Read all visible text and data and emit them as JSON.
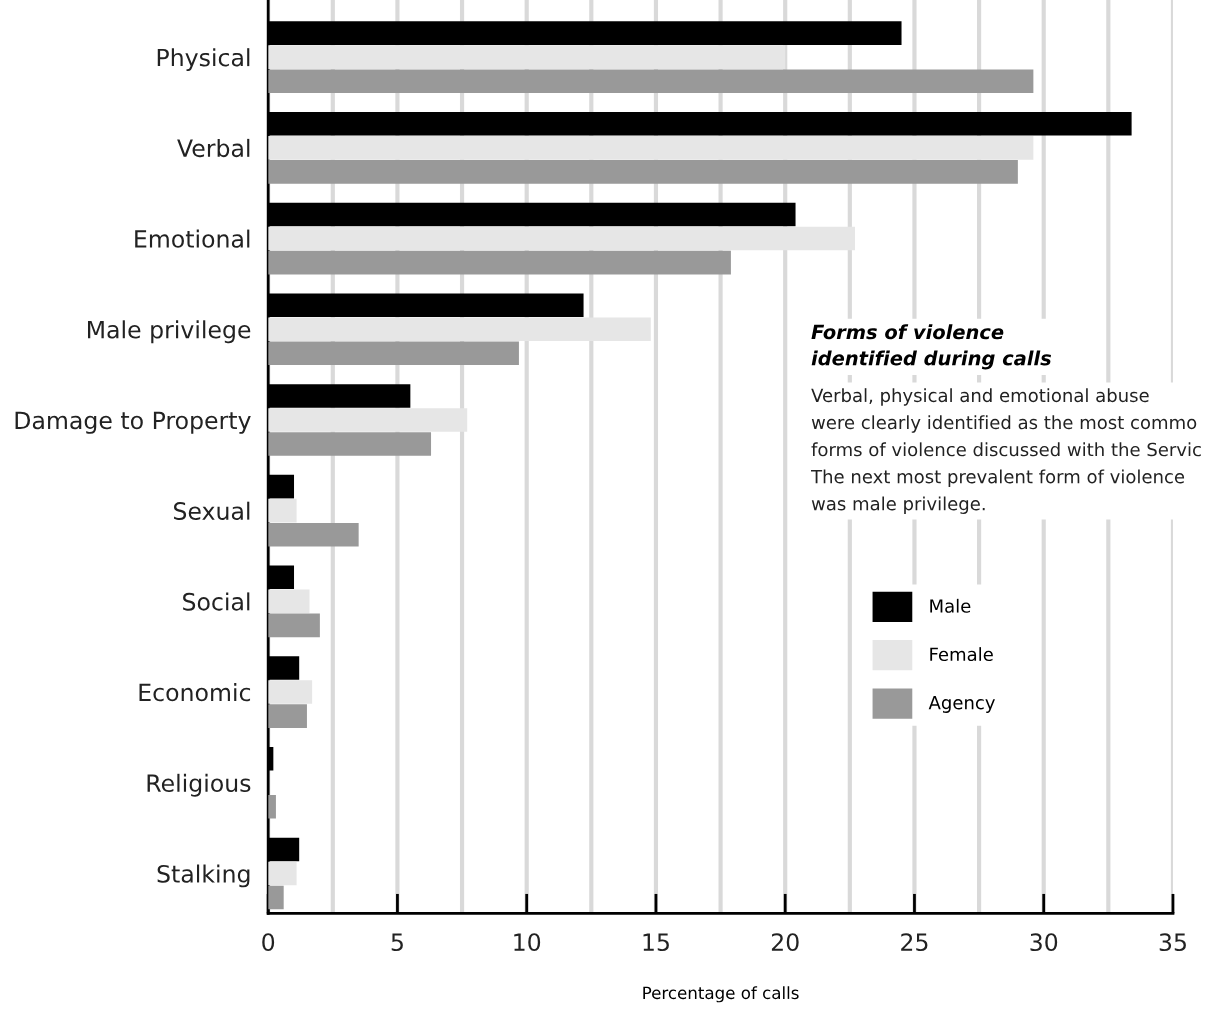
{
  "chart_data": {
    "type": "bar",
    "orientation": "horizontal",
    "xlabel": "Percentage of calls",
    "categories": [
      "Physical",
      "Verbal",
      "Emotional",
      "Male privilege",
      "Damage to Property",
      "Sexual",
      "Social",
      "Economic",
      "Religious",
      "Stalking"
    ],
    "series": [
      {
        "name": "Male",
        "color": "#000000",
        "values": [
          24.5,
          33.4,
          20.4,
          12.2,
          5.5,
          1.0,
          1.0,
          1.2,
          0.2,
          1.2
        ]
      },
      {
        "name": "Female",
        "color": "#e6e6e6",
        "values": [
          20.0,
          29.6,
          22.7,
          14.8,
          7.7,
          1.1,
          1.6,
          1.7,
          0,
          1.1
        ]
      },
      {
        "name": "Agency",
        "color": "#999999",
        "values": [
          29.6,
          29.0,
          17.9,
          9.7,
          6.3,
          3.5,
          2.0,
          1.5,
          0.3,
          0.6
        ]
      }
    ],
    "xlim": [
      0,
      35
    ],
    "xticks": [
      0,
      {
        "value": 2.5,
        "label": null
      },
      5,
      {
        "value": 7.5,
        "label": null
      },
      10,
      {
        "value": 12.5,
        "label": null
      },
      15,
      {
        "value": 17.5,
        "label": null
      },
      20,
      {
        "value": 22.5,
        "label": null
      },
      25,
      {
        "value": 27.5,
        "label": null
      },
      30,
      {
        "value": 32.5,
        "label": null
      },
      35
    ],
    "grid": "x",
    "legend": "right",
    "annotations": [
      "Forms of violence\nidentified during calls",
      "Verbal, physical and emotional abuse\nwere clearly identified as the most commo\nforms of violence discussed with the Servic\nThe next most prevalent form of violence\nwas male privilege."
    ]
  }
}
